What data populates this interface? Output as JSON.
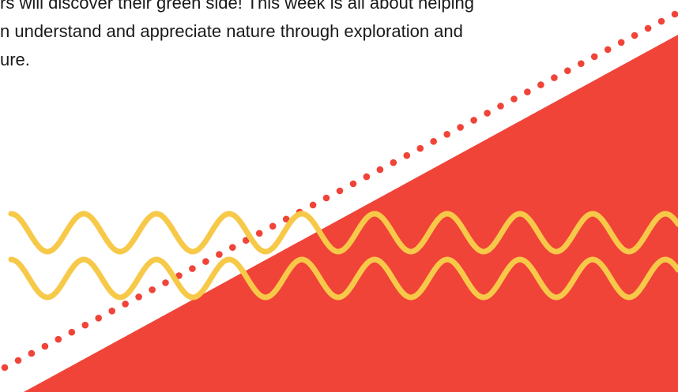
{
  "intro": {
    "lines": [
      "rs will discover their green side! This week is all about helping",
      "n understand and appreciate nature through exploration and",
      "ure."
    ]
  },
  "colors": {
    "text": "#1a1a1a",
    "triangle": "#f04438",
    "dots": "#f04438",
    "waves": "#f7c948",
    "background": "#ffffff"
  },
  "decor": {
    "triangle_name": "red-diagonal-triangle",
    "dots_name": "dotted-diagonal-line",
    "waves_name": "yellow-wavy-lines"
  }
}
